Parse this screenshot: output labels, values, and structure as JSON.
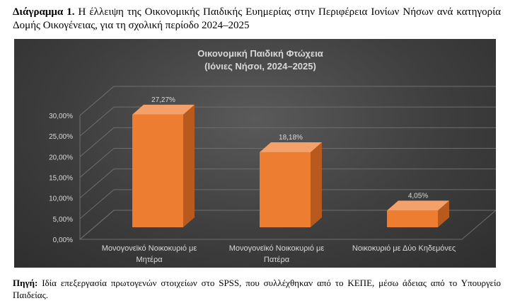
{
  "caption": {
    "label": "Διάγραμμα 1.",
    "text": "Η έλλειψη της Οικονομικής Παιδικής Ευημερίας στην Περιφέρεια Ιονίων Νήσων ανά κατηγορία Δομής Οικογένειας, για τη σχολική περίοδο 2024–2025"
  },
  "chart_data": {
    "type": "bar",
    "title": "Οικονομική Παιδική Φτώχεια",
    "subtitle": "(Ιόνιες Νήσοι, 2024–2025)",
    "categories": [
      [
        "Μονογονεϊκό Νοικοκυριό με",
        "Μητέρα"
      ],
      [
        "Μονογονεϊκό Νοικοκυριό με",
        "Πατέρα"
      ],
      [
        "Νοικοκυριό με Δύο Κηδεμόνες"
      ]
    ],
    "values": [
      27.27,
      18.18,
      4.05
    ],
    "data_labels": [
      "27,27%",
      "18,18%",
      "4,05%"
    ],
    "ylim": [
      0,
      30
    ],
    "yticks": [
      0,
      5,
      10,
      15,
      20,
      25,
      30
    ],
    "ytick_labels": [
      "0,00%",
      "5,00%",
      "10,00%",
      "15,00%",
      "20,00%",
      "25,00%",
      "30,00%"
    ],
    "bar_color": "#ed7d31",
    "grid": true
  },
  "source": {
    "label": "Πηγή:",
    "text": "Ιδία επεξεργασία πρωτογενών στοιχείων στο SPSS, που συλλέχθηκαν από το ΚΕΠΕ, μέσω άδειας από το Υπουργείο Παιδείας."
  }
}
